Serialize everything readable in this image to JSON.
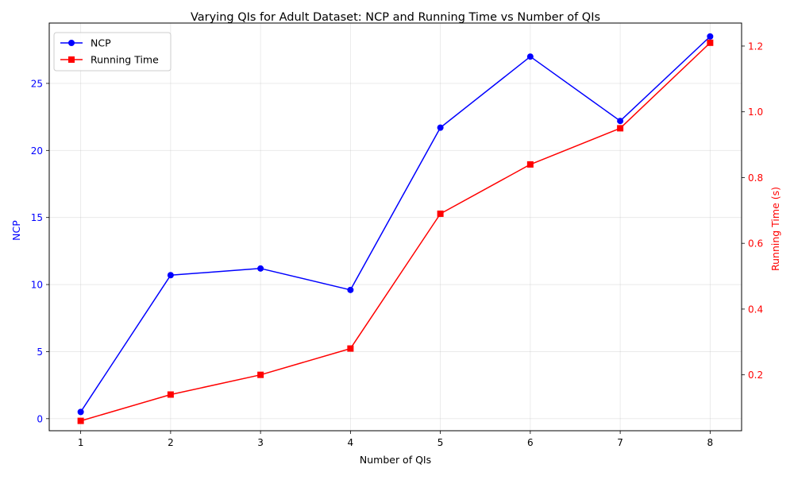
{
  "chart_data": {
    "type": "line",
    "title": "Varying QIs for Adult Dataset: NCP and Running Time vs Number of QIs",
    "xlabel": "Number of QIs",
    "x": [
      1,
      2,
      3,
      4,
      5,
      6,
      7,
      8
    ],
    "xlim": [
      0.65,
      8.35
    ],
    "xticks": [
      "1",
      "2",
      "3",
      "4",
      "5",
      "6",
      "7",
      "8"
    ],
    "y_left": {
      "label": "NCP",
      "color": "#0000ff",
      "lim": [
        -0.9,
        29.5
      ],
      "ticks": [
        "0",
        "5",
        "10",
        "15",
        "20",
        "25"
      ]
    },
    "y_right": {
      "label": "Running Time (s)",
      "color": "#ff0000",
      "lim": [
        0.03,
        1.27
      ],
      "ticks": [
        "0.2",
        "0.4",
        "0.6",
        "0.8",
        "1.0",
        "1.2"
      ]
    },
    "series": [
      {
        "name": "NCP",
        "axis": "left",
        "color": "#0000ff",
        "marker": "circle",
        "values": [
          0.5,
          10.7,
          11.2,
          9.6,
          21.7,
          27.0,
          22.2,
          28.5
        ]
      },
      {
        "name": "Running Time",
        "axis": "right",
        "color": "#ff0000",
        "marker": "square",
        "values": [
          0.06,
          0.14,
          0.2,
          0.28,
          0.69,
          0.84,
          0.95,
          1.21
        ]
      }
    ],
    "grid": true,
    "legend_position": "top-left"
  }
}
